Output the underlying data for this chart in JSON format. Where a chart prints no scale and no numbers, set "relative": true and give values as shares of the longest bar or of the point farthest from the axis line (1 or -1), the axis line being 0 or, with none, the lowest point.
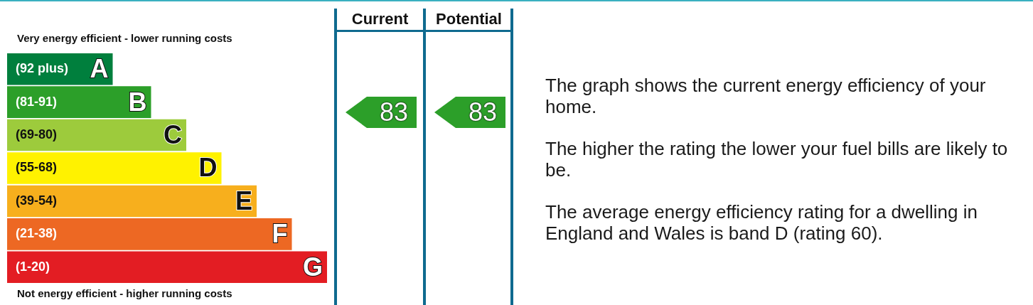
{
  "chart_data": [
    {
      "type": "bar",
      "orientation": "horizontal",
      "relative": true,
      "title": "Very energy efficient - lower running costs",
      "xlabel": "Not energy efficient - higher running costs",
      "categories": [
        "A",
        "B",
        "C",
        "D",
        "E",
        "F",
        "G"
      ],
      "values": [
        0.33,
        0.45,
        0.56,
        0.67,
        0.78,
        0.89,
        1
      ],
      "colors": [
        "#007f3d",
        "#2c9f29",
        "#9dcb3c",
        "#fff200",
        "#f7af1d",
        "#ed6823",
        "#e31d23"
      ],
      "annotations": [
        "(92 plus)",
        "(81-91)",
        "(69-80)",
        "(55-68)",
        "(39-54)",
        "(21-38)",
        "(1-20)"
      ],
      "legend": false
    },
    {
      "type": "other",
      "categories": [
        "Current",
        "Potential"
      ],
      "values": [
        83,
        83
      ],
      "colors": [
        "#2c9f29",
        "#2c9f29"
      ],
      "data_labels": true
    },
    {
      "type": "other",
      "annotations": [
        "The graph shows the current energy efficiency of your home.",
        "The higher the rating the lower your fuel bills are likely to be.",
        "The average energy efficiency rating for a dwelling in England and Wales is band D (rating 60)."
      ]
    }
  ]
}
